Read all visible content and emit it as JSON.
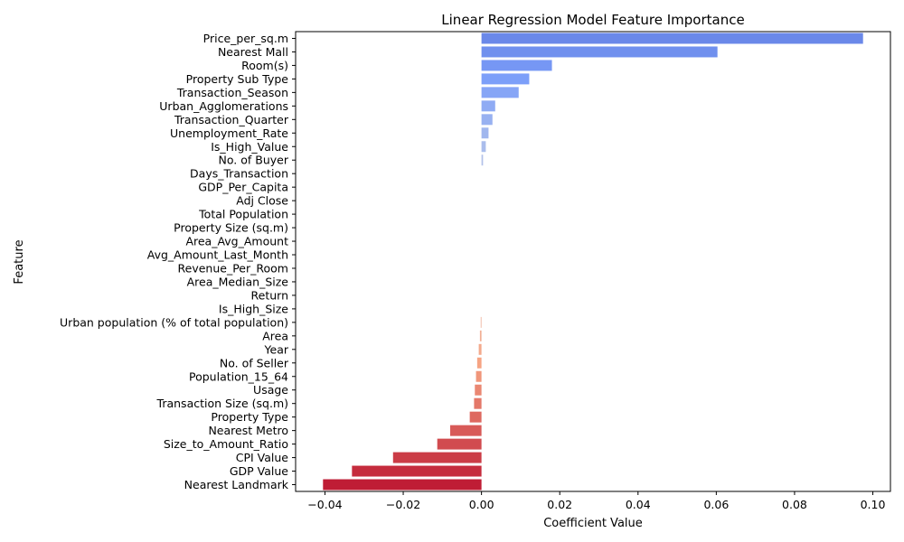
{
  "chart_data": {
    "type": "bar",
    "orientation": "horizontal",
    "title": "Linear Regression Model Feature Importance",
    "xlabel": "Coefficient Value",
    "ylabel": "Feature",
    "xlim": [
      -0.0475,
      0.1045
    ],
    "xticks": [
      -0.04,
      -0.02,
      0.0,
      0.02,
      0.04,
      0.06,
      0.08,
      0.1
    ],
    "xtick_labels": [
      "−0.04",
      "−0.02",
      "0.00",
      "0.02",
      "0.04",
      "0.06",
      "0.08",
      "0.10"
    ],
    "grid": false,
    "colormap": "coolwarm",
    "categories": [
      "Price_per_sq.m",
      "Nearest Mall",
      "Room(s)",
      "Property Sub Type",
      "Transaction_Season",
      "Urban_Agglomerations",
      "Transaction_Quarter",
      "Unemployment_Rate",
      "Is_High_Value",
      "No. of Buyer",
      "Days_Transaction",
      "GDP_Per_Capita",
      "Adj Close",
      "Total Population",
      "Property Size (sq.m)",
      "Area_Avg_Amount",
      "Avg_Amount_Last_Month",
      "Revenue_Per_Room",
      "Area_Median_Size",
      "Return",
      "Is_High_Size",
      "Urban population (% of total population)",
      "Area",
      "Year",
      "No. of Seller",
      "Population_15_64",
      "Usage",
      "Transaction Size (sq.m)",
      "Property Type",
      "Nearest Metro",
      "Size_to_Amount_Ratio",
      "CPI Value",
      "GDP Value",
      "Nearest Landmark"
    ],
    "values": [
      0.0975,
      0.0603,
      0.018,
      0.0122,
      0.0095,
      0.0035,
      0.0028,
      0.0018,
      0.0011,
      0.0004,
      0.0,
      0.0,
      0.0,
      0.0,
      0.0,
      0.0,
      0.0,
      0.0,
      0.0,
      0.0,
      0.0,
      -0.0002,
      -0.0004,
      -0.0007,
      -0.0011,
      -0.0014,
      -0.0017,
      -0.0019,
      -0.003,
      -0.008,
      -0.0113,
      -0.0226,
      -0.0331,
      -0.0405
    ]
  }
}
